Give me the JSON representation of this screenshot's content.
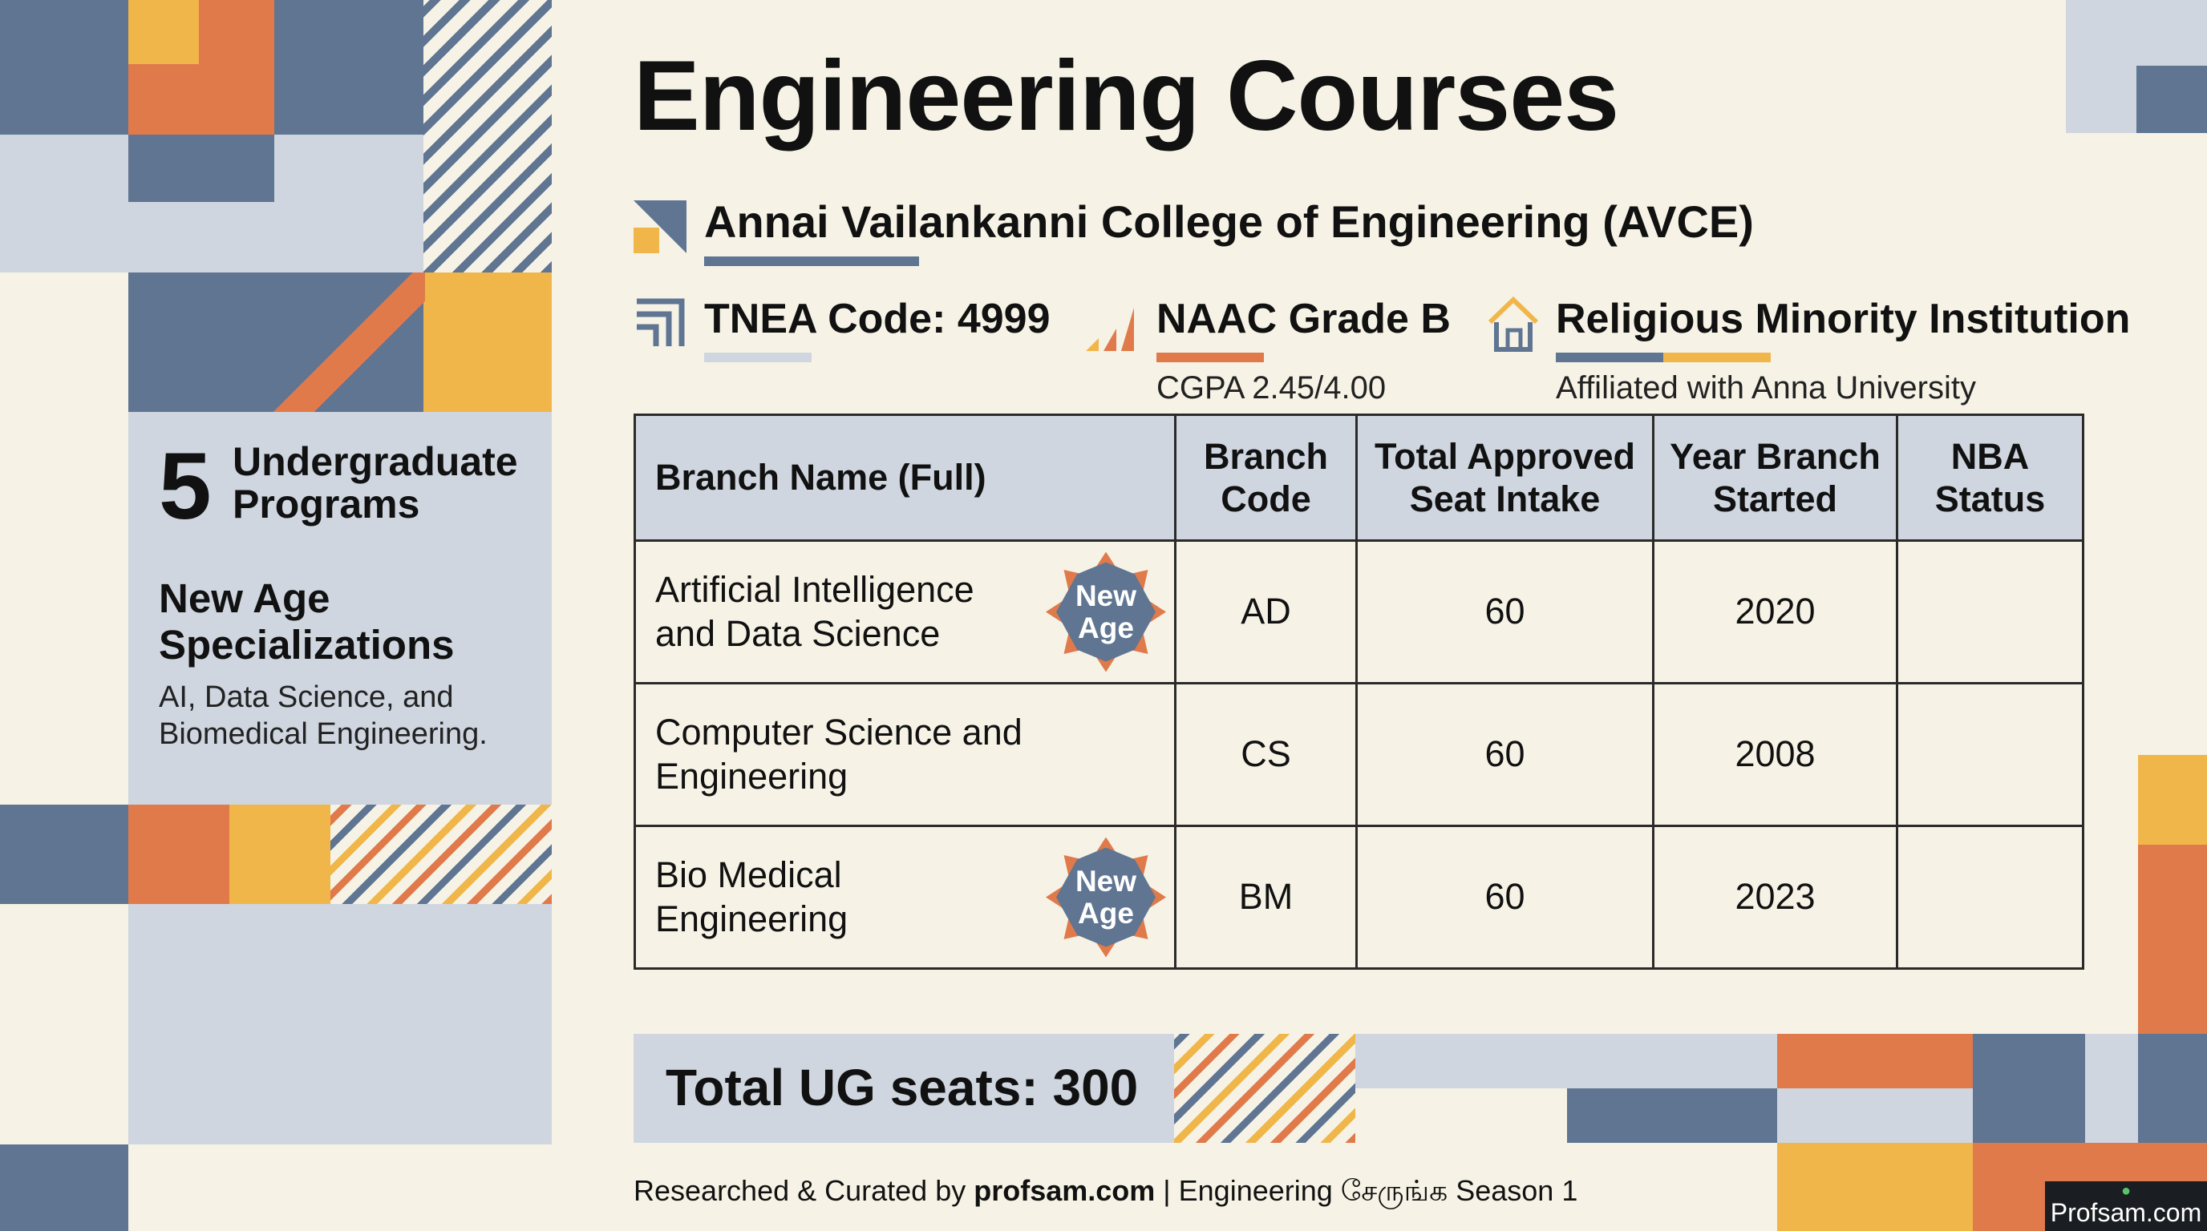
{
  "title": "Engineering Courses",
  "college": "Annai Vailankanni College of Engineering (AVCE)",
  "meta": {
    "tnea": "TNEA Code: 4999",
    "naac": "NAAC Grade B",
    "cgpa": "CGPA 2.45/4.00",
    "minority": "Religious Minority Institution",
    "affiliation": "Affiliated with Anna University"
  },
  "side": {
    "count": "5",
    "heading": "Undergraduate Programs",
    "subheading": "New Age Specializations",
    "description": "AI, Data Science, and Biomedical Engineering."
  },
  "table": {
    "headers": [
      "Branch Name (Full)",
      "Branch Code",
      "Total Approved Seat Intake",
      "Year Branch Started",
      "NBA Status"
    ],
    "rows": [
      {
        "name": "Artificial Intelligence and Data Science",
        "code": "AD",
        "intake": "60",
        "year": "2020",
        "nba": "",
        "badge": "New Age"
      },
      {
        "name": "Computer Science and Engineering",
        "code": "CS",
        "intake": "60",
        "year": "2008",
        "nba": "",
        "badge": ""
      },
      {
        "name": "Bio Medical Engineering",
        "code": "BM",
        "intake": "60",
        "year": "2023",
        "nba": "",
        "badge": "New Age"
      }
    ]
  },
  "total": "Total UG seats: 300",
  "footer": {
    "prefix": "Researched & Curated by ",
    "site": "profsam.com",
    "suffix": " | Engineering சேருங்க Season 1"
  },
  "logo_text": "Profsam.com",
  "colors": {
    "slate": "#5f7592",
    "light_slate": "#cfd6e0",
    "orange": "#e07a4b",
    "yellow": "#f0b64a",
    "cream": "#f6f3e6"
  }
}
